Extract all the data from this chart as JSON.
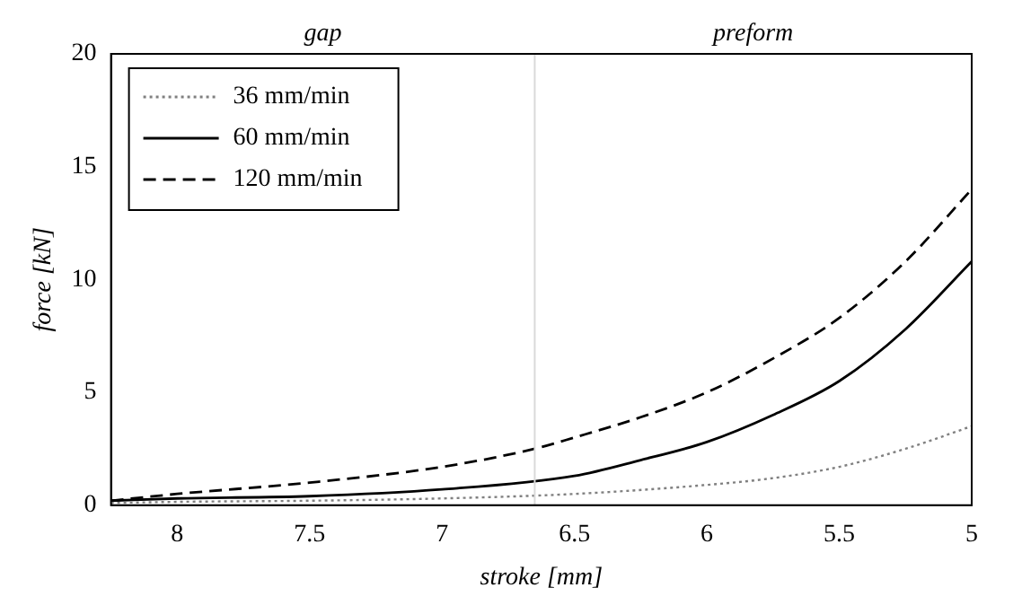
{
  "chart_data": {
    "type": "line",
    "xlabel": "stroke [mm]",
    "ylabel": "force [kN]",
    "xlim": [
      8.25,
      5
    ],
    "xticks": [
      8,
      7.5,
      7,
      6.5,
      6,
      5.5,
      5
    ],
    "ylim": [
      0,
      20
    ],
    "yticks": [
      0,
      5,
      10,
      15,
      20
    ],
    "grid": false,
    "legend": "top left",
    "marker": "none",
    "ref_lines": [
      {
        "axis": "x",
        "value": 6.65,
        "color": "#d9d9d9"
      }
    ],
    "annotations": [
      "gap",
      "preform"
    ],
    "series": [
      {
        "name": "36 mm/min",
        "color": "#808080",
        "line_style": "dotted",
        "x": [
          8.25,
          8,
          7.5,
          7,
          6.5,
          6,
          5.75,
          5.5,
          5.25,
          5
        ],
        "values": [
          0.1,
          0.15,
          0.2,
          0.3,
          0.5,
          0.9,
          1.2,
          1.7,
          2.5,
          3.5
        ]
      },
      {
        "name": "60 mm/min",
        "color": "#000000",
        "line_style": "solid",
        "x": [
          8.25,
          8,
          7.5,
          7,
          6.5,
          6.25,
          6,
          5.75,
          5.5,
          5.25,
          5
        ],
        "values": [
          0.2,
          0.3,
          0.4,
          0.7,
          1.3,
          2.0,
          2.8,
          4.0,
          5.5,
          7.8,
          10.8
        ]
      },
      {
        "name": "120 mm/min",
        "color": "#000000",
        "line_style": "dashed",
        "x": [
          8.25,
          8,
          7.5,
          7,
          6.65,
          6.5,
          6.25,
          6,
          5.75,
          5.5,
          5.25,
          5
        ],
        "values": [
          0.2,
          0.5,
          1.0,
          1.7,
          2.5,
          3.0,
          3.9,
          5.0,
          6.5,
          8.3,
          10.8,
          14.0
        ]
      }
    ]
  }
}
